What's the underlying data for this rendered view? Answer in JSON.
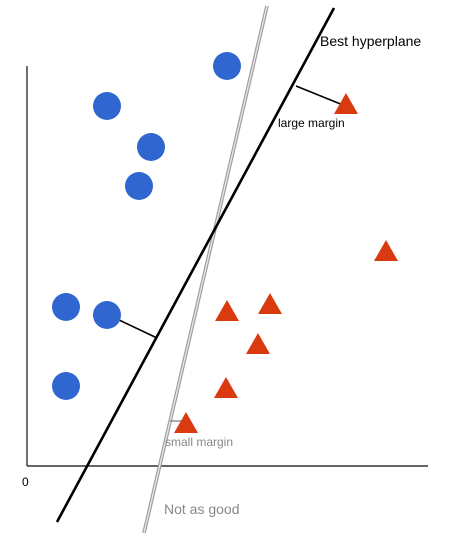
{
  "labels": {
    "best_hyperplane": "Best hyperplane",
    "large_margin": "large margin",
    "small_margin": "small margin",
    "not_as_good": "Not as good",
    "origin": "0"
  },
  "colors": {
    "circle": "#2f66d0",
    "triangle": "#d93a10",
    "axis": "#333333",
    "best_line": "#000000",
    "alt_line_stroke": "#9a9a9a",
    "alt_line_fill": "#e0e0e0",
    "grey_text": "#888888"
  },
  "class_a_shape": "circle",
  "class_b_shape": "triangle"
}
